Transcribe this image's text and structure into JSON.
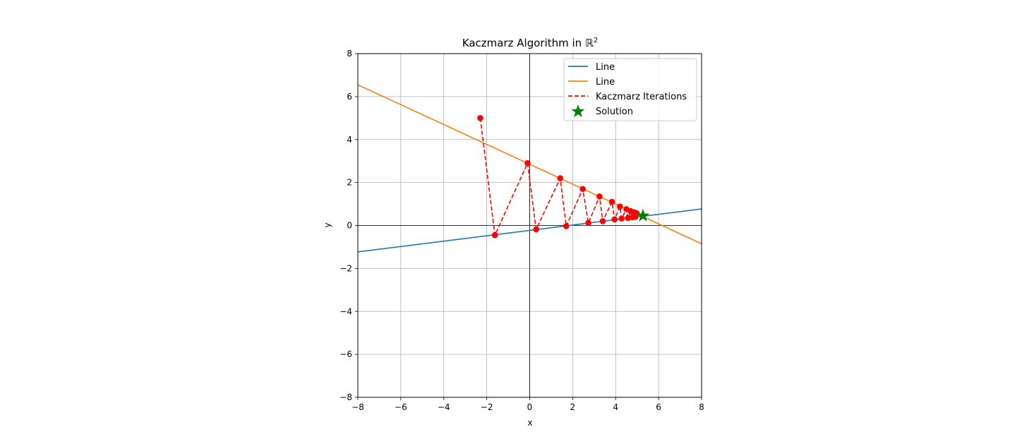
{
  "chart_data": {
    "type": "line",
    "title_main": "Kaczmarz Algorithm in ",
    "title_symbol": "ℝ",
    "title_superscript": "2",
    "xlabel": "x",
    "ylabel": "y",
    "xlim": [
      -8,
      8
    ],
    "ylim": [
      -8,
      8
    ],
    "xticks": [
      -8,
      -6,
      -4,
      -2,
      0,
      2,
      4,
      6,
      8
    ],
    "yticks": [
      -8,
      -6,
      -4,
      -2,
      0,
      2,
      4,
      6,
      8
    ],
    "xtick_labels": [
      "−8",
      "−6",
      "−4",
      "−2",
      "0",
      "2",
      "4",
      "6",
      "8"
    ],
    "ytick_labels": [
      "−8",
      "−6",
      "−4",
      "−2",
      "0",
      "2",
      "4",
      "6",
      "8"
    ],
    "grid": true,
    "legend_position": "top-right",
    "series": [
      {
        "name": "Line",
        "style": "solid",
        "color": "#1f77b4",
        "x": [
          -8,
          8
        ],
        "y": [
          -1.23,
          0.77
        ]
      },
      {
        "name": "Line",
        "style": "solid",
        "color": "#ff7f0e",
        "x": [
          -8,
          8
        ],
        "y": [
          6.55,
          -0.85
        ]
      },
      {
        "name": "Kaczmarz Iterations",
        "style": "dashed",
        "marker": "circle",
        "color": "#ff0000",
        "x": [
          -2.3,
          -1.62,
          -0.1,
          0.3,
          1.42,
          1.7,
          2.47,
          2.73,
          3.25,
          3.4,
          3.83,
          3.95,
          4.2,
          4.28,
          4.5,
          4.58,
          4.7,
          4.78,
          4.88,
          4.92,
          4.98
        ],
        "y": [
          5.0,
          -0.45,
          2.9,
          -0.18,
          2.2,
          -0.03,
          1.7,
          0.12,
          1.35,
          0.2,
          1.1,
          0.28,
          0.88,
          0.32,
          0.76,
          0.35,
          0.67,
          0.38,
          0.61,
          0.4,
          0.57
        ]
      },
      {
        "name": "Solution",
        "style": "marker",
        "marker": "star",
        "color": "#008000",
        "x": [
          5.27
        ],
        "y": [
          0.45
        ]
      }
    ]
  }
}
